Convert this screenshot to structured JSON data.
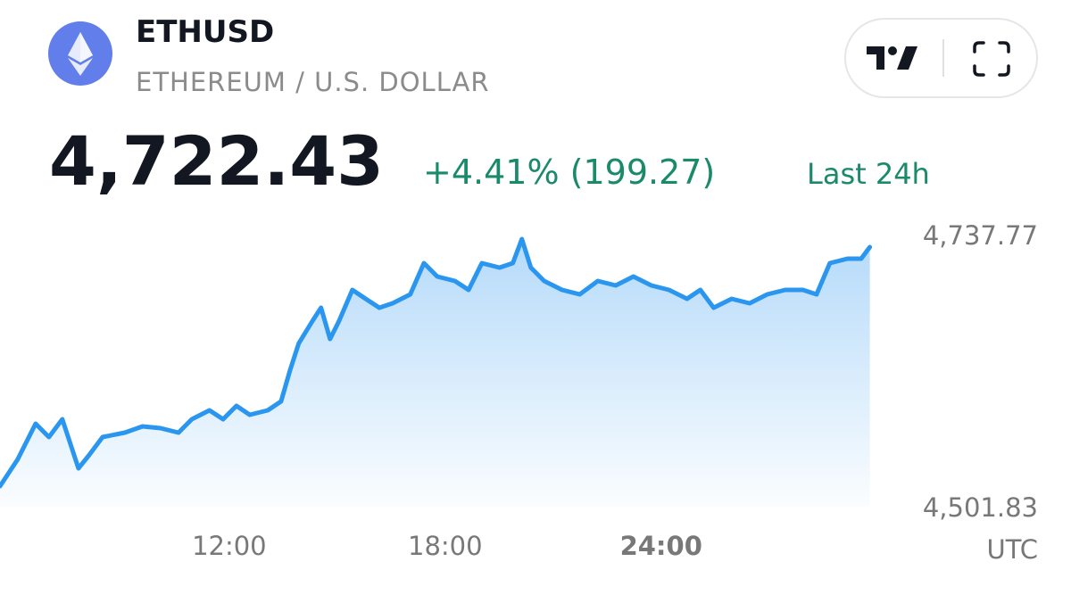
{
  "header": {
    "symbol": "ETHUSD",
    "description": "ETHEREUM / U.S. DOLLAR",
    "price": "4,722.43",
    "change": "+4.41% (199.27)",
    "period": "Last 24h"
  },
  "chart_data": {
    "type": "area",
    "color": "#2b96ef",
    "x": [
      5.63,
      6.12,
      6.62,
      6.99,
      7.36,
      7.81,
      8.11,
      8.48,
      9.1,
      9.59,
      10.09,
      10.59,
      10.96,
      11.45,
      11.83,
      12.2,
      12.57,
      13.07,
      13.44,
      13.69,
      13.93,
      14.31,
      14.55,
      14.8,
      15.05,
      15.42,
      15.79,
      16.17,
      16.54,
      17.03,
      17.41,
      17.78,
      18.27,
      18.65,
      19.02,
      19.51,
      19.88,
      20.13,
      20.38,
      20.75,
      21.25,
      21.74,
      22.24,
      22.74,
      23.23,
      23.73,
      24.22,
      24.72,
      25.09,
      25.46,
      25.96,
      26.46,
      26.95,
      27.45,
      27.94,
      28.32,
      28.69,
      29.18,
      29.56,
      29.8
    ],
    "values": [
      4519.62,
      4542.83,
      4573.77,
      4562.17,
      4577.64,
      4535.09,
      4546.7,
      4562.17,
      4566.04,
      4571.45,
      4569.91,
      4566.04,
      4577.64,
      4585.38,
      4577.64,
      4589.25,
      4581.51,
      4585.38,
      4593.11,
      4620.19,
      4643.4,
      4662.74,
      4674.34,
      4647.27,
      4662.74,
      4689.81,
      4682.08,
      4674.34,
      4678.21,
      4685.95,
      4713.02,
      4701.42,
      4697.55,
      4689.81,
      4713.02,
      4709.15,
      4713.02,
      4733.91,
      4709.15,
      4697.55,
      4689.81,
      4685.95,
      4697.55,
      4693.68,
      4701.42,
      4693.68,
      4689.81,
      4682.08,
      4689.81,
      4674.34,
      4682.08,
      4678.21,
      4685.95,
      4689.81,
      4689.81,
      4685.95,
      4713.02,
      4716.89,
      4716.89,
      4726.95
    ],
    "xlim": [
      5.63,
      30.43
    ],
    "xticks": [
      {
        "value": 12,
        "label": "12:00"
      },
      {
        "value": 18,
        "label": "18:00"
      },
      {
        "value": 24,
        "label": "24:00"
      }
    ],
    "x_label": "UTC",
    "ylim": [
      4501.83,
      4737.77
    ],
    "yticks": [
      {
        "value": 4737.77,
        "label": "4,737.77"
      },
      {
        "value": 4501.83,
        "label": "4,501.83"
      }
    ]
  }
}
